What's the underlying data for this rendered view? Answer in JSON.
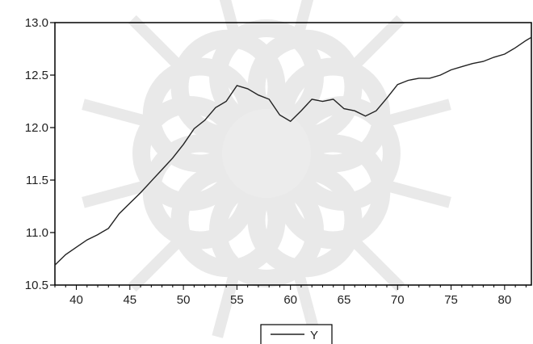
{
  "chart_data": {
    "type": "line",
    "title": "",
    "xlabel": "",
    "ylabel": "",
    "xlim": [
      38,
      82.5
    ],
    "ylim": [
      10.5,
      13.0
    ],
    "x_ticks": [
      40,
      45,
      50,
      55,
      60,
      65,
      70,
      75,
      80
    ],
    "y_ticks": [
      10.5,
      11.0,
      11.5,
      12.0,
      12.5,
      13.0
    ],
    "x_tick_labels": [
      "40",
      "45",
      "50",
      "55",
      "60",
      "65",
      "70",
      "75",
      "80"
    ],
    "y_tick_labels": [
      "10.5",
      "11.0",
      "11.5",
      "12.0",
      "12.5",
      "13.0"
    ],
    "grid": false,
    "legend": {
      "position": "bottom-center",
      "entries": [
        "Y"
      ]
    },
    "series": [
      {
        "name": "Y",
        "color": "#222222",
        "x": [
          38,
          39,
          40,
          41,
          42,
          43,
          44,
          45,
          46,
          47,
          48,
          49,
          50,
          51,
          52,
          53,
          54,
          55,
          56,
          57,
          58,
          59,
          60,
          61,
          62,
          63,
          64,
          65,
          66,
          67,
          68,
          69,
          70,
          71,
          72,
          73,
          74,
          75,
          76,
          77,
          78,
          79,
          80,
          81,
          82,
          82.5
        ],
        "y": [
          10.69,
          10.79,
          10.86,
          10.93,
          10.98,
          11.04,
          11.18,
          11.28,
          11.38,
          11.49,
          11.6,
          11.71,
          11.84,
          11.99,
          12.07,
          12.19,
          12.25,
          12.4,
          12.37,
          12.31,
          12.27,
          12.12,
          12.06,
          12.16,
          12.27,
          12.25,
          12.27,
          12.18,
          12.16,
          12.11,
          12.16,
          12.28,
          12.41,
          12.45,
          12.47,
          12.47,
          12.5,
          12.55,
          12.58,
          12.61,
          12.63,
          12.67,
          12.7,
          12.76,
          12.83,
          12.86
        ]
      }
    ]
  },
  "background_watermark": "star-ornament-watermark"
}
